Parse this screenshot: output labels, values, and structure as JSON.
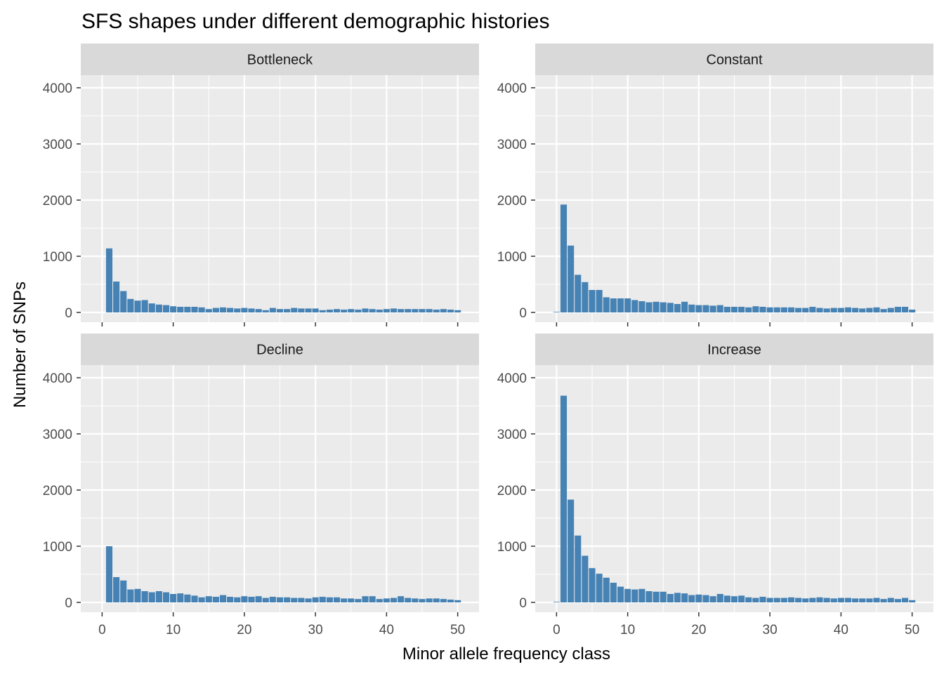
{
  "chart_data": {
    "type": "bar",
    "title": "SFS shapes under different demographic histories",
    "xlabel": "Minor allele frequency class",
    "ylabel": "Number of SNPs",
    "xlim": [
      -3,
      53
    ],
    "ylim": [
      0,
      4000
    ],
    "x_ticks": [
      0,
      10,
      20,
      30,
      40,
      50
    ],
    "y_ticks": [
      0,
      1000,
      2000,
      3000,
      4000
    ],
    "grid": true,
    "bar_color": "#4682B4",
    "panel_background": "#EBEBEB",
    "strip_background": "#D9D9D9",
    "x": [
      0,
      1,
      2,
      3,
      4,
      5,
      6,
      7,
      8,
      9,
      10,
      11,
      12,
      13,
      14,
      15,
      16,
      17,
      18,
      19,
      20,
      21,
      22,
      23,
      24,
      25,
      26,
      27,
      28,
      29,
      30,
      31,
      32,
      33,
      34,
      35,
      36,
      37,
      38,
      39,
      40,
      41,
      42,
      43,
      44,
      45,
      46,
      47,
      48,
      49,
      50
    ],
    "facets": [
      {
        "name": "Bottleneck",
        "values": [
          0,
          1140,
          550,
          380,
          240,
          210,
          220,
          160,
          140,
          130,
          110,
          100,
          100,
          100,
          90,
          60,
          80,
          90,
          80,
          70,
          80,
          70,
          60,
          40,
          80,
          60,
          60,
          80,
          70,
          70,
          70,
          40,
          50,
          60,
          50,
          60,
          50,
          70,
          60,
          50,
          60,
          70,
          60,
          60,
          60,
          60,
          60,
          50,
          60,
          50,
          40
        ]
      },
      {
        "name": "Constant",
        "values": [
          10,
          1920,
          1190,
          670,
          540,
          400,
          400,
          270,
          250,
          250,
          250,
          220,
          200,
          180,
          190,
          180,
          170,
          150,
          190,
          140,
          130,
          130,
          120,
          130,
          100,
          100,
          100,
          90,
          110,
          100,
          90,
          90,
          90,
          90,
          80,
          80,
          100,
          80,
          70,
          80,
          80,
          90,
          80,
          70,
          80,
          90,
          60,
          80,
          100,
          100,
          50
        ]
      },
      {
        "name": "Decline",
        "values": [
          0,
          1000,
          450,
          390,
          230,
          240,
          200,
          180,
          200,
          180,
          150,
          160,
          140,
          120,
          90,
          110,
          100,
          130,
          100,
          90,
          110,
          100,
          110,
          80,
          100,
          90,
          90,
          80,
          80,
          70,
          90,
          100,
          90,
          90,
          70,
          70,
          60,
          110,
          110,
          60,
          70,
          80,
          110,
          80,
          70,
          60,
          70,
          70,
          60,
          50,
          40
        ]
      },
      {
        "name": "Increase",
        "values": [
          10,
          3680,
          1830,
          1190,
          830,
          610,
          510,
          440,
          350,
          280,
          240,
          230,
          240,
          200,
          190,
          190,
          150,
          170,
          160,
          130,
          140,
          130,
          110,
          150,
          120,
          110,
          120,
          90,
          80,
          100,
          80,
          80,
          80,
          90,
          80,
          70,
          80,
          90,
          80,
          70,
          80,
          80,
          70,
          70,
          70,
          80,
          60,
          80,
          60,
          80,
          40
        ]
      }
    ]
  }
}
